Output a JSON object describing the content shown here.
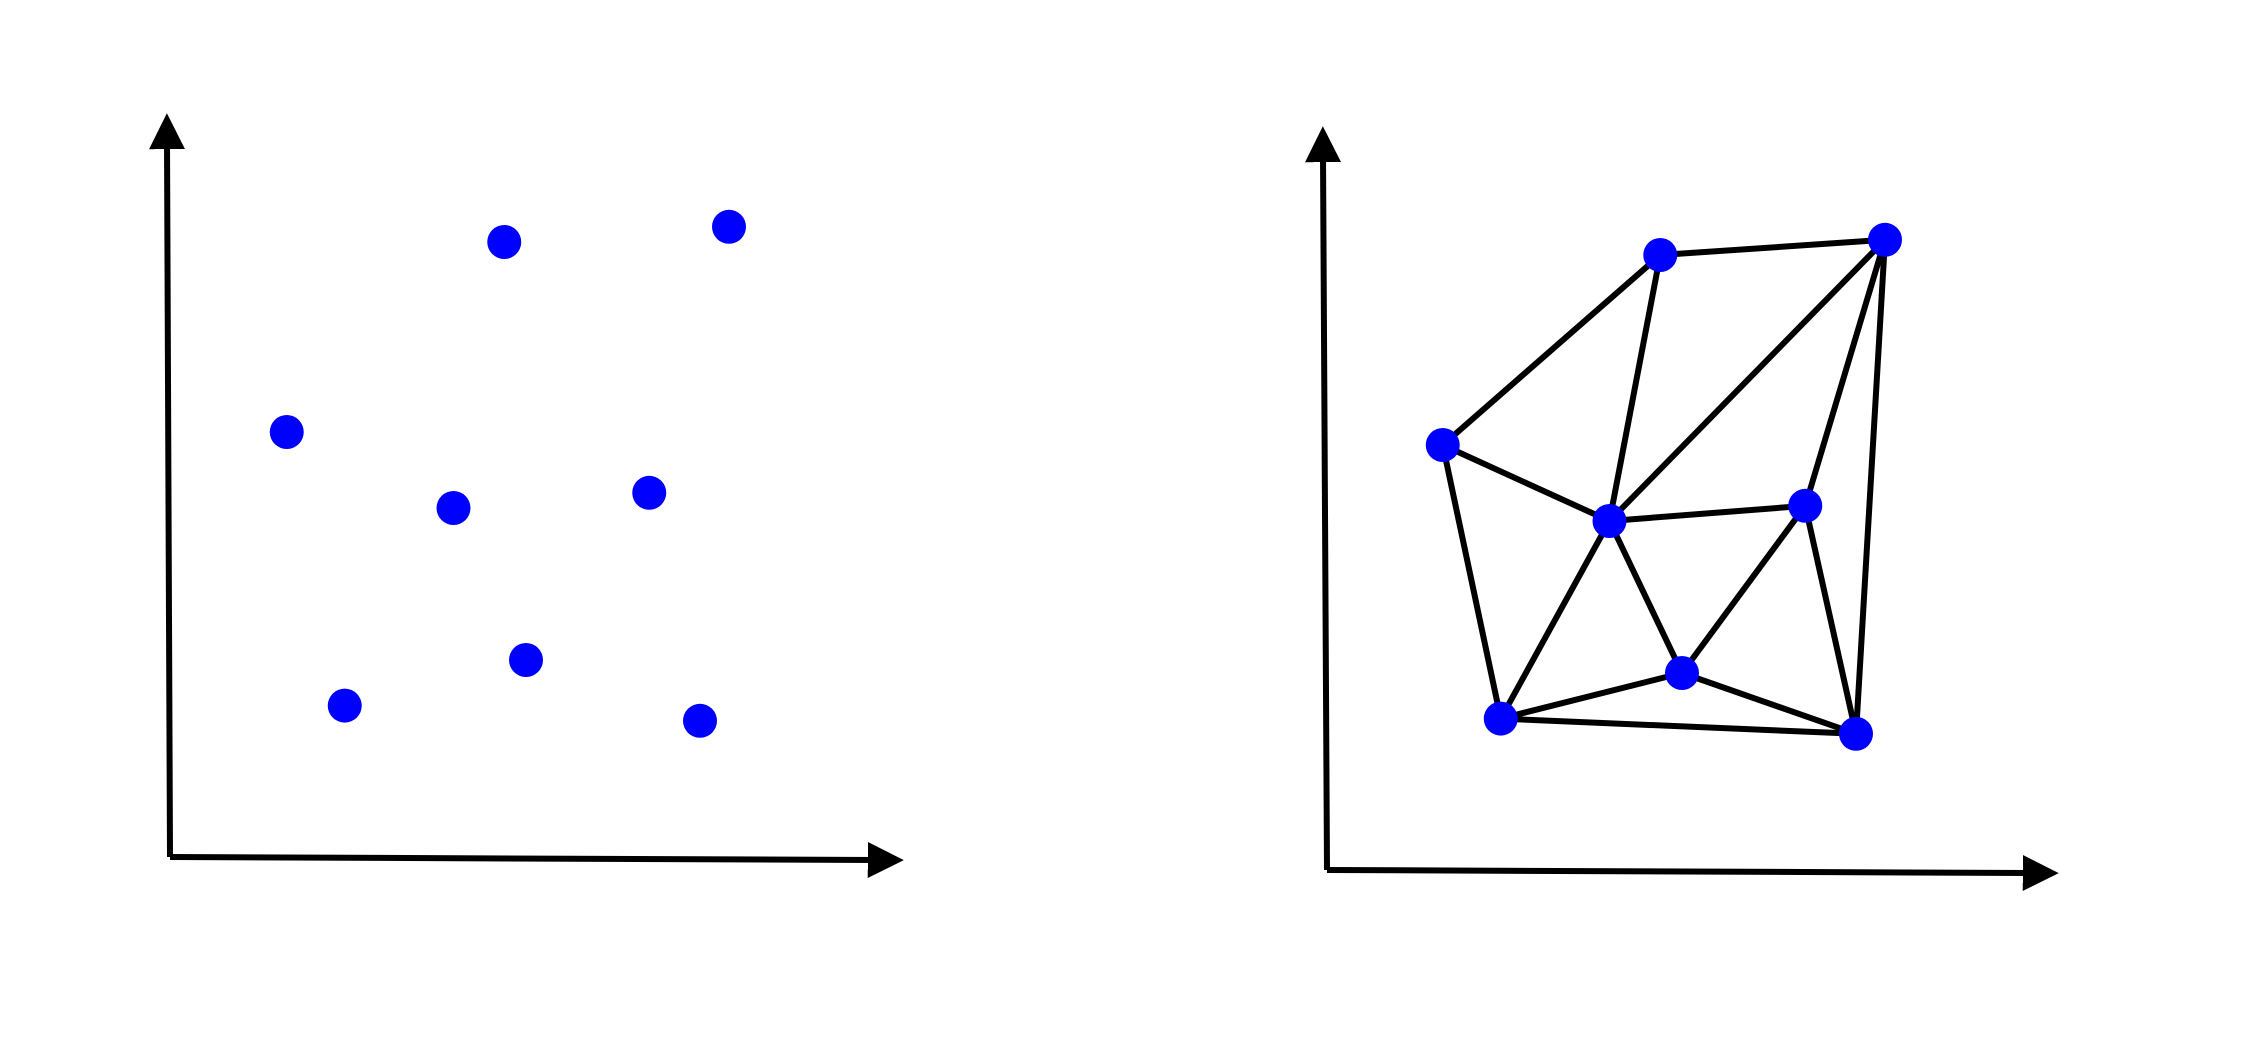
{
  "colors": {
    "axis": "#000000",
    "point": "#0000ff",
    "edge": "#000000",
    "background": "#ffffff"
  },
  "panels": [
    {
      "id": "scatter",
      "edges_shown": false,
      "points": [
        {
          "id": "p1",
          "x": 0.53,
          "y": 0.8
        },
        {
          "id": "p2",
          "x": 0.84,
          "y": 0.82
        },
        {
          "id": "p3",
          "x": 0.23,
          "y": 0.55
        },
        {
          "id": "p4",
          "x": 0.46,
          "y": 0.45
        },
        {
          "id": "p5",
          "x": 0.73,
          "y": 0.47
        },
        {
          "id": "p6",
          "x": 0.56,
          "y": 0.25
        },
        {
          "id": "p7",
          "x": 0.31,
          "y": 0.19
        },
        {
          "id": "p8",
          "x": 0.8,
          "y": 0.17
        }
      ]
    },
    {
      "id": "triangulation",
      "edges_shown": true,
      "points": [
        {
          "id": "p1",
          "x": 0.53,
          "y": 0.8
        },
        {
          "id": "p2",
          "x": 0.84,
          "y": 0.82
        },
        {
          "id": "p3",
          "x": 0.23,
          "y": 0.55
        },
        {
          "id": "p4",
          "x": 0.46,
          "y": 0.45
        },
        {
          "id": "p5",
          "x": 0.73,
          "y": 0.47
        },
        {
          "id": "p6",
          "x": 0.56,
          "y": 0.25
        },
        {
          "id": "p7",
          "x": 0.31,
          "y": 0.19
        },
        {
          "id": "p8",
          "x": 0.8,
          "y": 0.17
        }
      ],
      "edges": [
        [
          "p1",
          "p2"
        ],
        [
          "p1",
          "p3"
        ],
        [
          "p1",
          "p4"
        ],
        [
          "p2",
          "p4"
        ],
        [
          "p2",
          "p5"
        ],
        [
          "p2",
          "p8"
        ],
        [
          "p3",
          "p4"
        ],
        [
          "p3",
          "p7"
        ],
        [
          "p4",
          "p5"
        ],
        [
          "p4",
          "p6"
        ],
        [
          "p4",
          "p7"
        ],
        [
          "p5",
          "p6"
        ],
        [
          "p5",
          "p8"
        ],
        [
          "p6",
          "p7"
        ],
        [
          "p6",
          "p8"
        ],
        [
          "p7",
          "p8"
        ]
      ]
    }
  ]
}
